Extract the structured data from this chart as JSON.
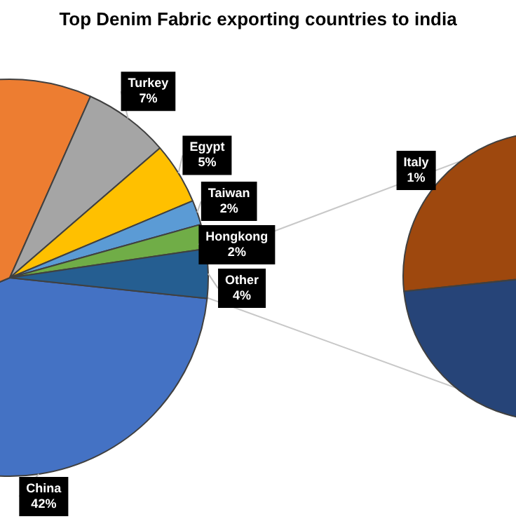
{
  "chart_data": [
    {
      "type": "pie",
      "title": "Top Denim Fabric exporting countries to india",
      "categories": [
        "China",
        null,
        "Turkey",
        "Egypt",
        "Taiwan",
        "Hongkong",
        "Other"
      ],
      "values": [
        42,
        38,
        7,
        5,
        2,
        2,
        4
      ],
      "colors": [
        "#4472c4",
        "#ed7d31",
        "#a5a5a5",
        "#ffc000",
        "#5b9bd5",
        "#70ad47",
        "#255e91"
      ],
      "value_labels": [
        "42%",
        null,
        "7%",
        "5%",
        "2%",
        "2%",
        "4%"
      ],
      "legend": false
    },
    {
      "type": "pie",
      "categories": [
        "Italy",
        null
      ],
      "values": [
        1,
        3
      ],
      "colors": [
        "#9e480e",
        "#264478"
      ],
      "value_labels": [
        "1%",
        null
      ],
      "legend": false
    }
  ]
}
